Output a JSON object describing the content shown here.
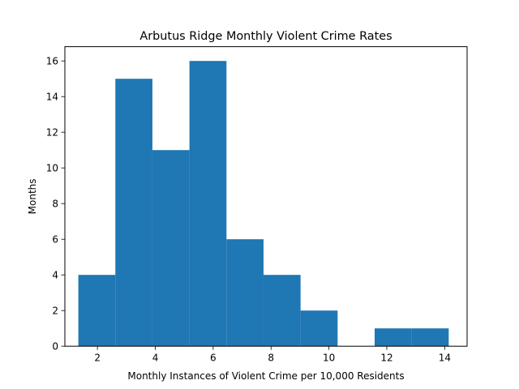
{
  "chart_data": {
    "type": "bar",
    "title": "Arbutus Ridge Monthly Violent Crime Rates",
    "xlabel": "Monthly Instances of Violent Crime per 10,000 Residents",
    "ylabel": "Months",
    "xlim": [
      0.875,
      14.775
    ],
    "ylim": [
      0,
      16.8
    ],
    "bins": [
      {
        "start": 1.34,
        "end": 2.62,
        "count": 4
      },
      {
        "start": 2.62,
        "end": 3.9,
        "count": 15
      },
      {
        "start": 3.9,
        "end": 5.18,
        "count": 11
      },
      {
        "start": 5.18,
        "end": 6.46,
        "count": 16
      },
      {
        "start": 6.46,
        "end": 7.74,
        "count": 6
      },
      {
        "start": 7.74,
        "end": 9.02,
        "count": 4
      },
      {
        "start": 9.02,
        "end": 10.3,
        "count": 2
      },
      {
        "start": 10.3,
        "end": 11.58,
        "count": 0
      },
      {
        "start": 11.58,
        "end": 12.86,
        "count": 1
      },
      {
        "start": 12.86,
        "end": 14.14,
        "count": 1
      }
    ],
    "x_ticks": [
      2,
      4,
      6,
      8,
      10,
      12,
      14
    ],
    "y_ticks": [
      0,
      2,
      4,
      6,
      8,
      10,
      12,
      14,
      16
    ],
    "grid": false,
    "legend": "none",
    "bar_color": "#1f77b4"
  }
}
